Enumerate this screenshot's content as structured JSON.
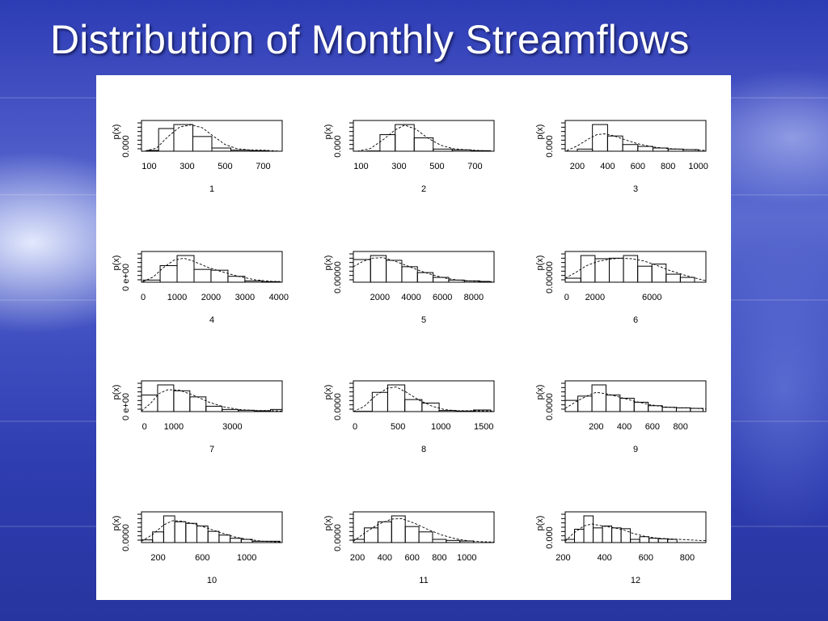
{
  "slide": {
    "title": "Distribution of Monthly Streamflows"
  },
  "chart_data": [
    {
      "type": "bar",
      "title": "1",
      "ylabel": "p(x)",
      "ytick_label": "0.000",
      "xticks": [
        100,
        300,
        500,
        700
      ],
      "xlim": [
        60,
        800
      ],
      "bins": [
        [
          90,
          150,
          0.03
        ],
        [
          150,
          230,
          0.85
        ],
        [
          230,
          330,
          1.0
        ],
        [
          330,
          430,
          0.55
        ],
        [
          430,
          530,
          0.12
        ],
        [
          530,
          630,
          0.04
        ],
        [
          630,
          730,
          0.02
        ]
      ],
      "density": [
        [
          80,
          0.01
        ],
        [
          140,
          0.12
        ],
        [
          200,
          0.55
        ],
        [
          260,
          0.9
        ],
        [
          320,
          0.99
        ],
        [
          380,
          0.88
        ],
        [
          440,
          0.55
        ],
        [
          500,
          0.25
        ],
        [
          560,
          0.1
        ],
        [
          620,
          0.05
        ],
        [
          700,
          0.04
        ],
        [
          790,
          0.0
        ]
      ]
    },
    {
      "type": "bar",
      "title": "2",
      "ylabel": "p(x)",
      "ytick_label": "0.000",
      "xticks": [
        100,
        300,
        500,
        700
      ],
      "xlim": [
        60,
        800
      ],
      "bins": [
        [
          130,
          200,
          0.01
        ],
        [
          200,
          280,
          0.62
        ],
        [
          280,
          380,
          1.0
        ],
        [
          380,
          480,
          0.5
        ],
        [
          480,
          580,
          0.08
        ],
        [
          580,
          680,
          0.05
        ],
        [
          680,
          780,
          0.02
        ]
      ],
      "density": [
        [
          80,
          0.0
        ],
        [
          150,
          0.1
        ],
        [
          220,
          0.45
        ],
        [
          280,
          0.8
        ],
        [
          330,
          0.98
        ],
        [
          390,
          0.82
        ],
        [
          450,
          0.5
        ],
        [
          520,
          0.22
        ],
        [
          590,
          0.09
        ],
        [
          660,
          0.05
        ],
        [
          740,
          0.02
        ],
        [
          800,
          0.0
        ]
      ]
    },
    {
      "type": "bar",
      "title": "3",
      "ylabel": "p(x)",
      "ytick_label": "0.000",
      "xticks": [
        200,
        400,
        600,
        800,
        1000
      ],
      "xlim": [
        120,
        1050
      ],
      "bins": [
        [
          200,
          300,
          0.08
        ],
        [
          300,
          400,
          1.0
        ],
        [
          400,
          500,
          0.57
        ],
        [
          500,
          600,
          0.25
        ],
        [
          600,
          700,
          0.18
        ],
        [
          700,
          800,
          0.12
        ],
        [
          800,
          900,
          0.08
        ],
        [
          900,
          1000,
          0.06
        ]
      ],
      "density": [
        [
          130,
          0.02
        ],
        [
          200,
          0.2
        ],
        [
          270,
          0.45
        ],
        [
          330,
          0.62
        ],
        [
          380,
          0.65
        ],
        [
          440,
          0.58
        ],
        [
          520,
          0.42
        ],
        [
          600,
          0.28
        ],
        [
          700,
          0.16
        ],
        [
          800,
          0.1
        ],
        [
          900,
          0.07
        ],
        [
          1050,
          0.03
        ]
      ]
    },
    {
      "type": "bar",
      "title": "4",
      "ylabel": "p(x)",
      "ytick_label": "0 e+00",
      "xticks": [
        0,
        1000,
        2000,
        3000,
        4000
      ],
      "xlim": [
        -50,
        4100
      ],
      "bins": [
        [
          0,
          500,
          0.08
        ],
        [
          500,
          1000,
          0.62
        ],
        [
          1000,
          1500,
          1.0
        ],
        [
          1500,
          2000,
          0.48
        ],
        [
          2000,
          2500,
          0.45
        ],
        [
          2500,
          3000,
          0.22
        ],
        [
          3000,
          3500,
          0.05
        ],
        [
          3500,
          4000,
          0.02
        ]
      ],
      "density": [
        [
          0,
          0.02
        ],
        [
          300,
          0.2
        ],
        [
          600,
          0.55
        ],
        [
          900,
          0.82
        ],
        [
          1200,
          0.9
        ],
        [
          1500,
          0.78
        ],
        [
          1900,
          0.56
        ],
        [
          2300,
          0.4
        ],
        [
          2800,
          0.22
        ],
        [
          3300,
          0.09
        ],
        [
          3800,
          0.03
        ],
        [
          4100,
          0.02
        ]
      ]
    },
    {
      "type": "bar",
      "title": "5",
      "ylabel": "p(x)",
      "ytick_label": "0.00000",
      "xticks": [
        2000,
        4000,
        6000,
        8000
      ],
      "xlim": [
        300,
        9300
      ],
      "bins": [
        [
          300,
          1400,
          0.85
        ],
        [
          1400,
          2400,
          1.0
        ],
        [
          2400,
          3400,
          0.82
        ],
        [
          3400,
          4400,
          0.58
        ],
        [
          4400,
          5400,
          0.36
        ],
        [
          5400,
          6400,
          0.18
        ],
        [
          6400,
          7400,
          0.08
        ],
        [
          7400,
          8400,
          0.05
        ],
        [
          8400,
          9000,
          0.03
        ]
      ],
      "density": [
        [
          300,
          0.58
        ],
        [
          900,
          0.78
        ],
        [
          1500,
          0.9
        ],
        [
          2200,
          0.92
        ],
        [
          3000,
          0.78
        ],
        [
          3800,
          0.6
        ],
        [
          4600,
          0.42
        ],
        [
          5400,
          0.27
        ],
        [
          6200,
          0.15
        ],
        [
          7000,
          0.08
        ],
        [
          8000,
          0.04
        ],
        [
          9300,
          0.02
        ]
      ]
    },
    {
      "type": "bar",
      "title": "6",
      "ylabel": "p(x)",
      "ytick_label": "0.00000",
      "xticks": [
        0,
        2000,
        6000
      ],
      "xlim": [
        -100,
        9800
      ],
      "bins": [
        [
          -100,
          1000,
          0.15
        ],
        [
          1000,
          2000,
          1.0
        ],
        [
          2000,
          3000,
          0.88
        ],
        [
          3000,
          4000,
          0.9
        ],
        [
          4000,
          5000,
          1.0
        ],
        [
          5000,
          6000,
          0.6
        ],
        [
          6000,
          7000,
          0.68
        ],
        [
          7000,
          8000,
          0.3
        ],
        [
          8000,
          9000,
          0.18
        ]
      ],
      "density": [
        [
          -100,
          0.15
        ],
        [
          600,
          0.35
        ],
        [
          1400,
          0.62
        ],
        [
          2200,
          0.78
        ],
        [
          3000,
          0.86
        ],
        [
          3800,
          0.9
        ],
        [
          4600,
          0.88
        ],
        [
          5400,
          0.8
        ],
        [
          6200,
          0.66
        ],
        [
          7200,
          0.45
        ],
        [
          8400,
          0.25
        ],
        [
          9800,
          0.05
        ]
      ]
    },
    {
      "type": "bar",
      "title": "7",
      "ylabel": "p(x)",
      "ytick_label": "0 e+00",
      "xticks": [
        0,
        1000,
        3000
      ],
      "xlim": [
        -100,
        4700
      ],
      "bins": [
        [
          -100,
          450,
          0.62
        ],
        [
          450,
          1000,
          1.0
        ],
        [
          1000,
          1550,
          0.78
        ],
        [
          1550,
          2100,
          0.55
        ],
        [
          2100,
          2650,
          0.2
        ],
        [
          2650,
          3200,
          0.08
        ],
        [
          3200,
          3750,
          0.05
        ],
        [
          3750,
          4300,
          0.03
        ],
        [
          4300,
          4700,
          0.08
        ]
      ],
      "density": [
        [
          -100,
          0.02
        ],
        [
          200,
          0.3
        ],
        [
          500,
          0.68
        ],
        [
          800,
          0.82
        ],
        [
          1200,
          0.8
        ],
        [
          1700,
          0.6
        ],
        [
          2200,
          0.35
        ],
        [
          2700,
          0.18
        ],
        [
          3200,
          0.08
        ],
        [
          3800,
          0.04
        ],
        [
          4200,
          0.04
        ],
        [
          4700,
          0.02
        ]
      ]
    },
    {
      "type": "bar",
      "title": "8",
      "ylabel": "p(x)",
      "ytick_label": "0.0000",
      "xticks": [
        0,
        500,
        1000,
        1500
      ],
      "xlim": [
        -20,
        1620
      ],
      "bins": [
        [
          0,
          200,
          0.01
        ],
        [
          200,
          380,
          0.72
        ],
        [
          380,
          580,
          1.0
        ],
        [
          580,
          780,
          0.45
        ],
        [
          780,
          980,
          0.32
        ],
        [
          980,
          1180,
          0.04
        ],
        [
          1180,
          1380,
          0.02
        ],
        [
          1380,
          1580,
          0.06
        ]
      ],
      "density": [
        [
          -20,
          0.0
        ],
        [
          100,
          0.18
        ],
        [
          250,
          0.62
        ],
        [
          380,
          0.88
        ],
        [
          480,
          0.92
        ],
        [
          600,
          0.72
        ],
        [
          750,
          0.42
        ],
        [
          900,
          0.2
        ],
        [
          1050,
          0.07
        ],
        [
          1200,
          0.03
        ],
        [
          1400,
          0.03
        ],
        [
          1620,
          0.02
        ]
      ]
    },
    {
      "type": "bar",
      "title": "9",
      "ylabel": "p(x)",
      "ytick_label": "0.0000",
      "xticks": [
        200,
        400,
        600,
        800
      ],
      "xlim": [
        -20,
        980
      ],
      "bins": [
        [
          -20,
          70,
          0.42
        ],
        [
          70,
          170,
          0.58
        ],
        [
          170,
          270,
          1.0
        ],
        [
          270,
          370,
          0.62
        ],
        [
          370,
          470,
          0.5
        ],
        [
          470,
          570,
          0.35
        ],
        [
          570,
          670,
          0.22
        ],
        [
          670,
          770,
          0.16
        ],
        [
          770,
          870,
          0.14
        ],
        [
          870,
          960,
          0.12
        ]
      ],
      "density": [
        [
          -20,
          0.12
        ],
        [
          60,
          0.38
        ],
        [
          140,
          0.6
        ],
        [
          200,
          0.72
        ],
        [
          280,
          0.66
        ],
        [
          380,
          0.52
        ],
        [
          480,
          0.38
        ],
        [
          580,
          0.26
        ],
        [
          680,
          0.18
        ],
        [
          780,
          0.14
        ],
        [
          880,
          0.13
        ],
        [
          980,
          0.1
        ]
      ]
    },
    {
      "type": "bar",
      "title": "10",
      "ylabel": "p(x)",
      "ytick_label": "0.0000",
      "xticks": [
        200,
        600,
        1000
      ],
      "xlim": [
        50,
        1320
      ],
      "bins": [
        [
          50,
          150,
          0.1
        ],
        [
          150,
          250,
          0.4
        ],
        [
          250,
          350,
          1.0
        ],
        [
          350,
          450,
          0.78
        ],
        [
          450,
          550,
          0.72
        ],
        [
          550,
          650,
          0.62
        ],
        [
          650,
          750,
          0.42
        ],
        [
          750,
          850,
          0.28
        ],
        [
          850,
          950,
          0.16
        ],
        [
          950,
          1050,
          0.12
        ],
        [
          1050,
          1300,
          0.05
        ]
      ],
      "density": [
        [
          50,
          0.05
        ],
        [
          150,
          0.3
        ],
        [
          250,
          0.66
        ],
        [
          330,
          0.82
        ],
        [
          420,
          0.8
        ],
        [
          520,
          0.7
        ],
        [
          640,
          0.55
        ],
        [
          760,
          0.38
        ],
        [
          880,
          0.22
        ],
        [
          1000,
          0.12
        ],
        [
          1150,
          0.05
        ],
        [
          1320,
          0.02
        ]
      ]
    },
    {
      "type": "bar",
      "title": "11",
      "ylabel": "p(x)",
      "ytick_label": "0.0000",
      "xticks": [
        200,
        400,
        600,
        800,
        1000
      ],
      "xlim": [
        170,
        1200
      ],
      "bins": [
        [
          170,
          250,
          0.12
        ],
        [
          250,
          350,
          0.55
        ],
        [
          350,
          450,
          0.78
        ],
        [
          450,
          550,
          1.0
        ],
        [
          550,
          650,
          0.6
        ],
        [
          650,
          750,
          0.4
        ],
        [
          750,
          850,
          0.12
        ],
        [
          850,
          950,
          0.08
        ],
        [
          950,
          1050,
          0.06
        ]
      ],
      "density": [
        [
          170,
          0.05
        ],
        [
          250,
          0.35
        ],
        [
          350,
          0.68
        ],
        [
          450,
          0.88
        ],
        [
          520,
          0.9
        ],
        [
          620,
          0.72
        ],
        [
          720,
          0.48
        ],
        [
          820,
          0.28
        ],
        [
          920,
          0.14
        ],
        [
          1020,
          0.06
        ],
        [
          1120,
          0.03
        ],
        [
          1200,
          0.02
        ]
      ]
    },
    {
      "type": "bar",
      "title": "12",
      "ylabel": "p(x)",
      "ytick_label": "0.000",
      "xticks": [
        200,
        400,
        600,
        800
      ],
      "xlim": [
        210,
        890
      ],
      "bins": [
        [
          210,
          255,
          0.12
        ],
        [
          255,
          300,
          0.5
        ],
        [
          300,
          345,
          1.0
        ],
        [
          345,
          390,
          0.55
        ],
        [
          390,
          435,
          0.62
        ],
        [
          435,
          480,
          0.55
        ],
        [
          480,
          525,
          0.52
        ],
        [
          525,
          570,
          0.12
        ],
        [
          570,
          615,
          0.22
        ],
        [
          615,
          660,
          0.16
        ],
        [
          660,
          705,
          0.14
        ],
        [
          705,
          750,
          0.12
        ]
      ],
      "density": [
        [
          210,
          0.05
        ],
        [
          250,
          0.35
        ],
        [
          300,
          0.62
        ],
        [
          340,
          0.7
        ],
        [
          390,
          0.62
        ],
        [
          440,
          0.56
        ],
        [
          490,
          0.48
        ],
        [
          540,
          0.34
        ],
        [
          600,
          0.22
        ],
        [
          660,
          0.16
        ],
        [
          760,
          0.12
        ],
        [
          890,
          0.07
        ]
      ]
    }
  ]
}
